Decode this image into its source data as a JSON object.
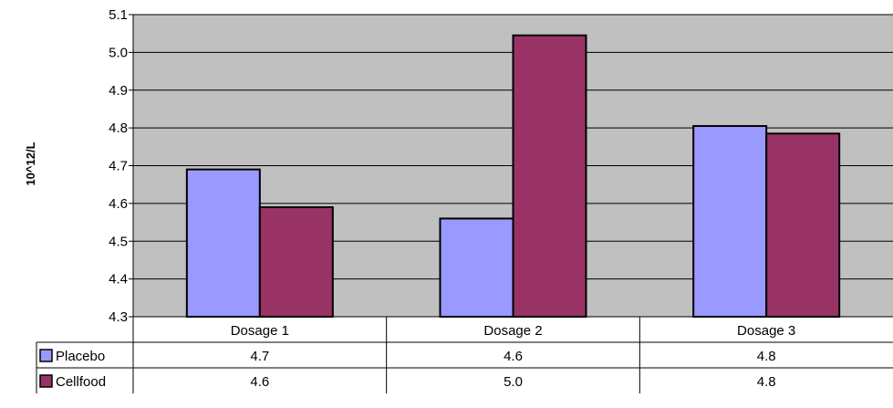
{
  "chart_data": {
    "type": "bar",
    "title": "",
    "xlabel": "",
    "ylabel": "10^12/L",
    "categories": [
      "Dosage 1",
      "Dosage 2",
      "Dosage 3"
    ],
    "ylim": [
      4.3,
      5.1
    ],
    "yticks": [
      "4.3",
      "4.4",
      "4.5",
      "4.6",
      "4.7",
      "4.8",
      "4.9",
      "5.0",
      "5.1"
    ],
    "grid": true,
    "legend": "data-table-left",
    "plot_background": "#c0c0c0",
    "series": [
      {
        "name": "Placebo",
        "color": "#9999ff",
        "values": [
          4.69,
          4.56,
          4.805
        ],
        "table_values": [
          "4.7",
          "4.6",
          "4.8"
        ]
      },
      {
        "name": "Cellfood",
        "color": "#993366",
        "values": [
          4.59,
          5.045,
          4.785
        ],
        "table_values": [
          "4.6",
          "5.0",
          "4.8"
        ]
      }
    ]
  }
}
